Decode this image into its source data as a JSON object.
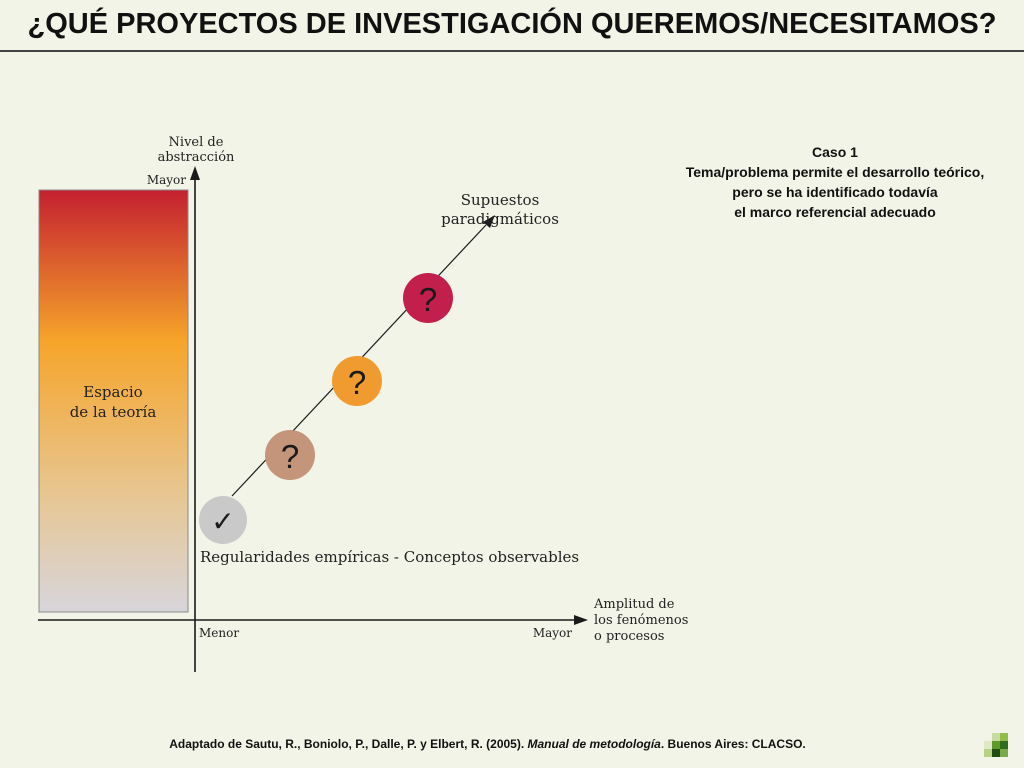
{
  "title": "¿QUÉ PROYECTOS DE INVESTIGACIÓN QUEREMOS/NECESITAMOS?",
  "y_axis": {
    "title_line1": "Nivel de",
    "title_line2": "abstracción",
    "top_label": "Mayor"
  },
  "x_axis": {
    "left_label": "Menor",
    "right_label": "Mayor",
    "title_line1": "Amplitud de",
    "title_line2": "los fenómenos",
    "title_line3": "o procesos"
  },
  "theory_space": {
    "line1": "Espacio",
    "line2": "de la teoría",
    "gradient_colors": [
      "#c42030",
      "#f6a52a",
      "#e6c89a",
      "#d7d5db"
    ]
  },
  "diagonal": {
    "top_label_line1": "Supuestos",
    "top_label_line2": "paradigmáticos",
    "bottom_label": "Regularidades empíricas - Conceptos observables"
  },
  "markers": [
    {
      "symbol": "✓",
      "color": "#c9c9c9",
      "icon": "check-icon"
    },
    {
      "symbol": "?",
      "color": "#c4957b",
      "icon": "question-icon"
    },
    {
      "symbol": "?",
      "color": "#ef9b2f",
      "icon": "question-icon"
    },
    {
      "symbol": "?",
      "color": "#c21f4d",
      "icon": "question-icon"
    }
  ],
  "caso": {
    "line1": "Caso 1",
    "line2": "Tema/problema permite el desarrollo teórico,",
    "line3": "pero se ha identificado todavía",
    "line4": "el marco referencial adecuado"
  },
  "footer": {
    "prefix": "Adaptado de Sautu, R., Boniolo, P., Dalle, P. y Elbert, R. (2005). ",
    "book": "Manual de metodología",
    "suffix": ". Buenos Aires: CLACSO."
  }
}
